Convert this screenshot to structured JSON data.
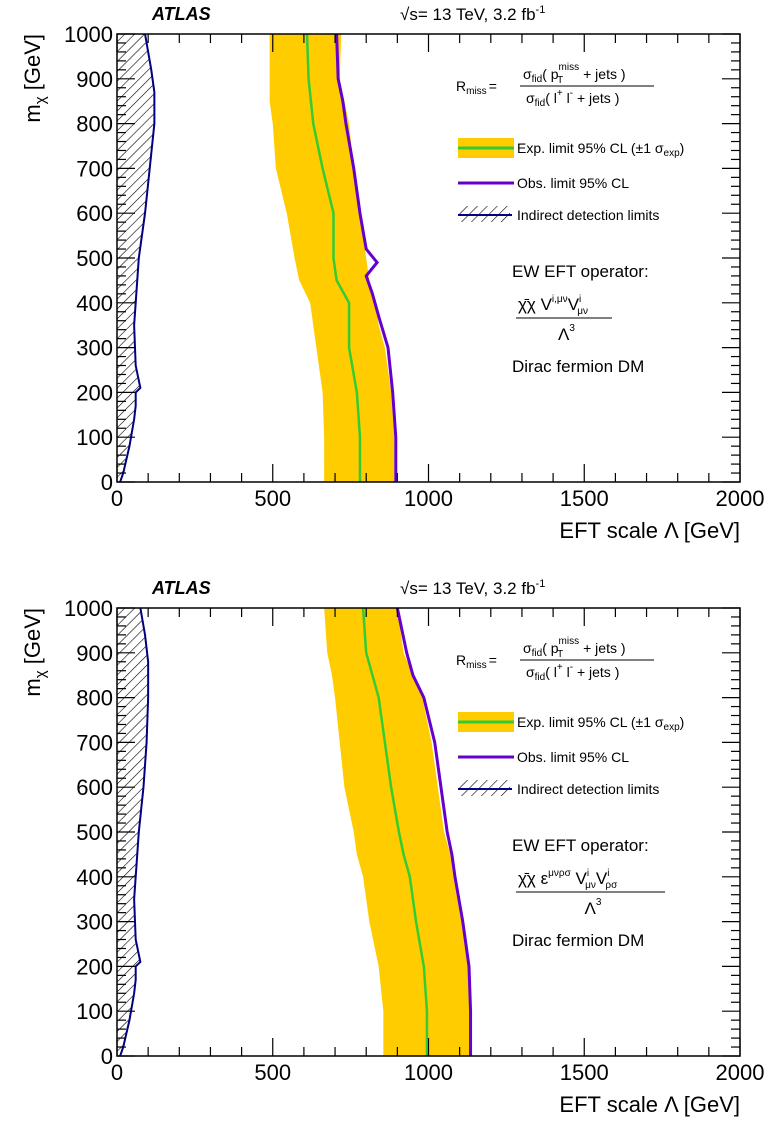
{
  "chart_data": [
    {
      "type": "line",
      "panel": "top",
      "atlas_label": "ATLAS",
      "energy_label": "= 13 TeV, 3.2 fb",
      "energy_sqrt": "√s",
      "energy_sup": "-1",
      "xlabel": "EFT scale Λ [GeV]",
      "ylabel_main": "m",
      "ylabel_sub": "χ",
      "ylabel_unit": " [GeV]",
      "xlim": [
        0,
        2000
      ],
      "ylim": [
        0,
        1000
      ],
      "xticks": [
        "0",
        "500",
        "1000",
        "1500",
        "2000"
      ],
      "yticks": [
        "0",
        "100",
        "200",
        "300",
        "400",
        "500",
        "600",
        "700",
        "800",
        "900",
        "1000"
      ],
      "rmiss": {
        "lhs": "R",
        "lhs_sub": "miss",
        "eq": "=",
        "num_sigma": "σ",
        "num_sub": "fid",
        "num_open": "( p",
        "num_p_sup": "miss",
        "num_p_sub": "T",
        "num_tail": " + jets )",
        "den_sigma": "σ",
        "den_sub": "fid",
        "den_open": "( l",
        "den_l1_sup": "+",
        "den_l2": " l",
        "den_l2_sup": "-",
        "den_tail": " + jets )"
      },
      "legend": [
        {
          "label": "Exp. limit 95% CL (±1 σ",
          "label_sub": "exp",
          "label_tail": ")",
          "kind": "band"
        },
        {
          "label": "Obs. limit 95% CL",
          "kind": "obs"
        },
        {
          "label": "Indirect detection limits",
          "kind": "hatch"
        }
      ],
      "operator": {
        "title": "EW EFT operator:",
        "numerator": "χ̄χ V",
        "num_sup1": "i,μν",
        "num_mid": "V",
        "num_sub2": "μν",
        "num_sup2": "i",
        "denominator": "Λ",
        "den_sup": "3",
        "footer": "Dirac fermion DM"
      },
      "colors": {
        "band": "#ffcc00",
        "expected": "#33cc33",
        "observed": "#6600cc",
        "indirect": "#000080"
      },
      "series": {
        "expected": {
          "x": [
            780,
            780,
            770,
            745,
            745,
            745,
            705,
            695,
            695,
            660,
            630,
            615,
            610
          ],
          "y": [
            0,
            100,
            200,
            300,
            350,
            400,
            450,
            500,
            600,
            700,
            800,
            900,
            1000
          ]
        },
        "observed": {
          "x": [
            895,
            895,
            885,
            870,
            840,
            820,
            800,
            835,
            800,
            780,
            760,
            735,
            725,
            710,
            705
          ],
          "y": [
            0,
            100,
            200,
            300,
            370,
            420,
            460,
            490,
            520,
            600,
            700,
            800,
            850,
            900,
            1000
          ]
        },
        "band_upper": {
          "x": [
            890,
            890,
            880,
            860,
            840,
            830,
            810,
            800,
            780,
            760,
            745,
            730,
            715,
            720
          ],
          "y": [
            0,
            100,
            200,
            300,
            350,
            400,
            450,
            500,
            600,
            700,
            800,
            850,
            900,
            1000
          ]
        },
        "band_lower": {
          "x": [
            665,
            665,
            660,
            640,
            630,
            620,
            585,
            570,
            545,
            510,
            500,
            490,
            490,
            490
          ],
          "y": [
            0,
            100,
            200,
            300,
            350,
            400,
            450,
            500,
            600,
            700,
            800,
            850,
            900,
            1000
          ]
        },
        "indirect": {
          "x": [
            10,
            20,
            40,
            55,
            60,
            60,
            75,
            60,
            55,
            70,
            90,
            105,
            120,
            120,
            110,
            90
          ],
          "y": [
            0,
            20,
            80,
            140,
            170,
            200,
            210,
            260,
            350,
            500,
            600,
            700,
            800,
            870,
            920,
            1000
          ]
        }
      }
    },
    {
      "type": "line",
      "panel": "bottom",
      "atlas_label": "ATLAS",
      "energy_label": "= 13 TeV, 3.2 fb",
      "energy_sqrt": "√s",
      "energy_sup": "-1",
      "xlabel": "EFT scale Λ [GeV]",
      "ylabel_main": "m",
      "ylabel_sub": "χ",
      "ylabel_unit": " [GeV]",
      "xlim": [
        0,
        2000
      ],
      "ylim": [
        0,
        1000
      ],
      "xticks": [
        "0",
        "500",
        "1000",
        "1500",
        "2000"
      ],
      "yticks": [
        "0",
        "100",
        "200",
        "300",
        "400",
        "500",
        "600",
        "700",
        "800",
        "900",
        "1000"
      ],
      "rmiss": {
        "lhs": "R",
        "lhs_sub": "miss",
        "eq": "=",
        "num_sigma": "σ",
        "num_sub": "fid",
        "num_open": "( p",
        "num_p_sup": "miss",
        "num_p_sub": "T",
        "num_tail": " + jets )",
        "den_sigma": "σ",
        "den_sub": "fid",
        "den_open": "( l",
        "den_l1_sup": "+",
        "den_l2": " l",
        "den_l2_sup": "-",
        "den_tail": " + jets )"
      },
      "legend": [
        {
          "label": "Exp. limit 95% CL (±1 σ",
          "label_sub": "exp",
          "label_tail": ")",
          "kind": "band"
        },
        {
          "label": "Obs. limit 95% CL",
          "kind": "obs"
        },
        {
          "label": "Indirect detection limits",
          "kind": "hatch"
        }
      ],
      "operator": {
        "title": "EW EFT operator:",
        "numerator": "χ̄χ ε",
        "num_sup1": "μνρσ",
        "num_mid": " V",
        "num_sub2": "μν",
        "num_sup2": "i",
        "num_mid2": "V",
        "num_sub3": "ρσ",
        "num_sup3": "i",
        "denominator": "Λ",
        "den_sup": "3",
        "footer": "Dirac fermion DM"
      },
      "colors": {
        "band": "#ffcc00",
        "expected": "#33cc33",
        "observed": "#6600cc",
        "indirect": "#000080"
      },
      "series": {
        "expected": {
          "x": [
            995,
            995,
            985,
            960,
            940,
            920,
            905,
            880,
            860,
            840,
            820,
            800,
            790
          ],
          "y": [
            0,
            100,
            200,
            300,
            400,
            450,
            500,
            600,
            700,
            800,
            850,
            900,
            1000
          ]
        },
        "observed": {
          "x": [
            1135,
            1135,
            1130,
            1110,
            1085,
            1075,
            1060,
            1040,
            1020,
            985,
            950,
            930,
            900
          ],
          "y": [
            0,
            100,
            200,
            300,
            400,
            450,
            500,
            600,
            700,
            800,
            850,
            900,
            1000
          ]
        },
        "band_upper": {
          "x": [
            1135,
            1135,
            1130,
            1105,
            1080,
            1070,
            1050,
            1030,
            1010,
            980,
            950,
            920,
            900
          ],
          "y": [
            0,
            100,
            200,
            300,
            400,
            450,
            500,
            600,
            700,
            800,
            850,
            900,
            1000
          ]
        },
        "band_lower": {
          "x": [
            855,
            855,
            840,
            810,
            790,
            770,
            760,
            730,
            715,
            700,
            690,
            675,
            665
          ],
          "y": [
            0,
            100,
            200,
            300,
            400,
            450,
            500,
            600,
            700,
            800,
            850,
            900,
            1000
          ]
        },
        "indirect": {
          "x": [
            10,
            20,
            40,
            55,
            60,
            60,
            75,
            60,
            55,
            70,
            85,
            95,
            100,
            100,
            90,
            75
          ],
          "y": [
            0,
            20,
            80,
            140,
            170,
            200,
            210,
            260,
            350,
            500,
            600,
            700,
            800,
            880,
            940,
            1000
          ]
        }
      }
    }
  ]
}
